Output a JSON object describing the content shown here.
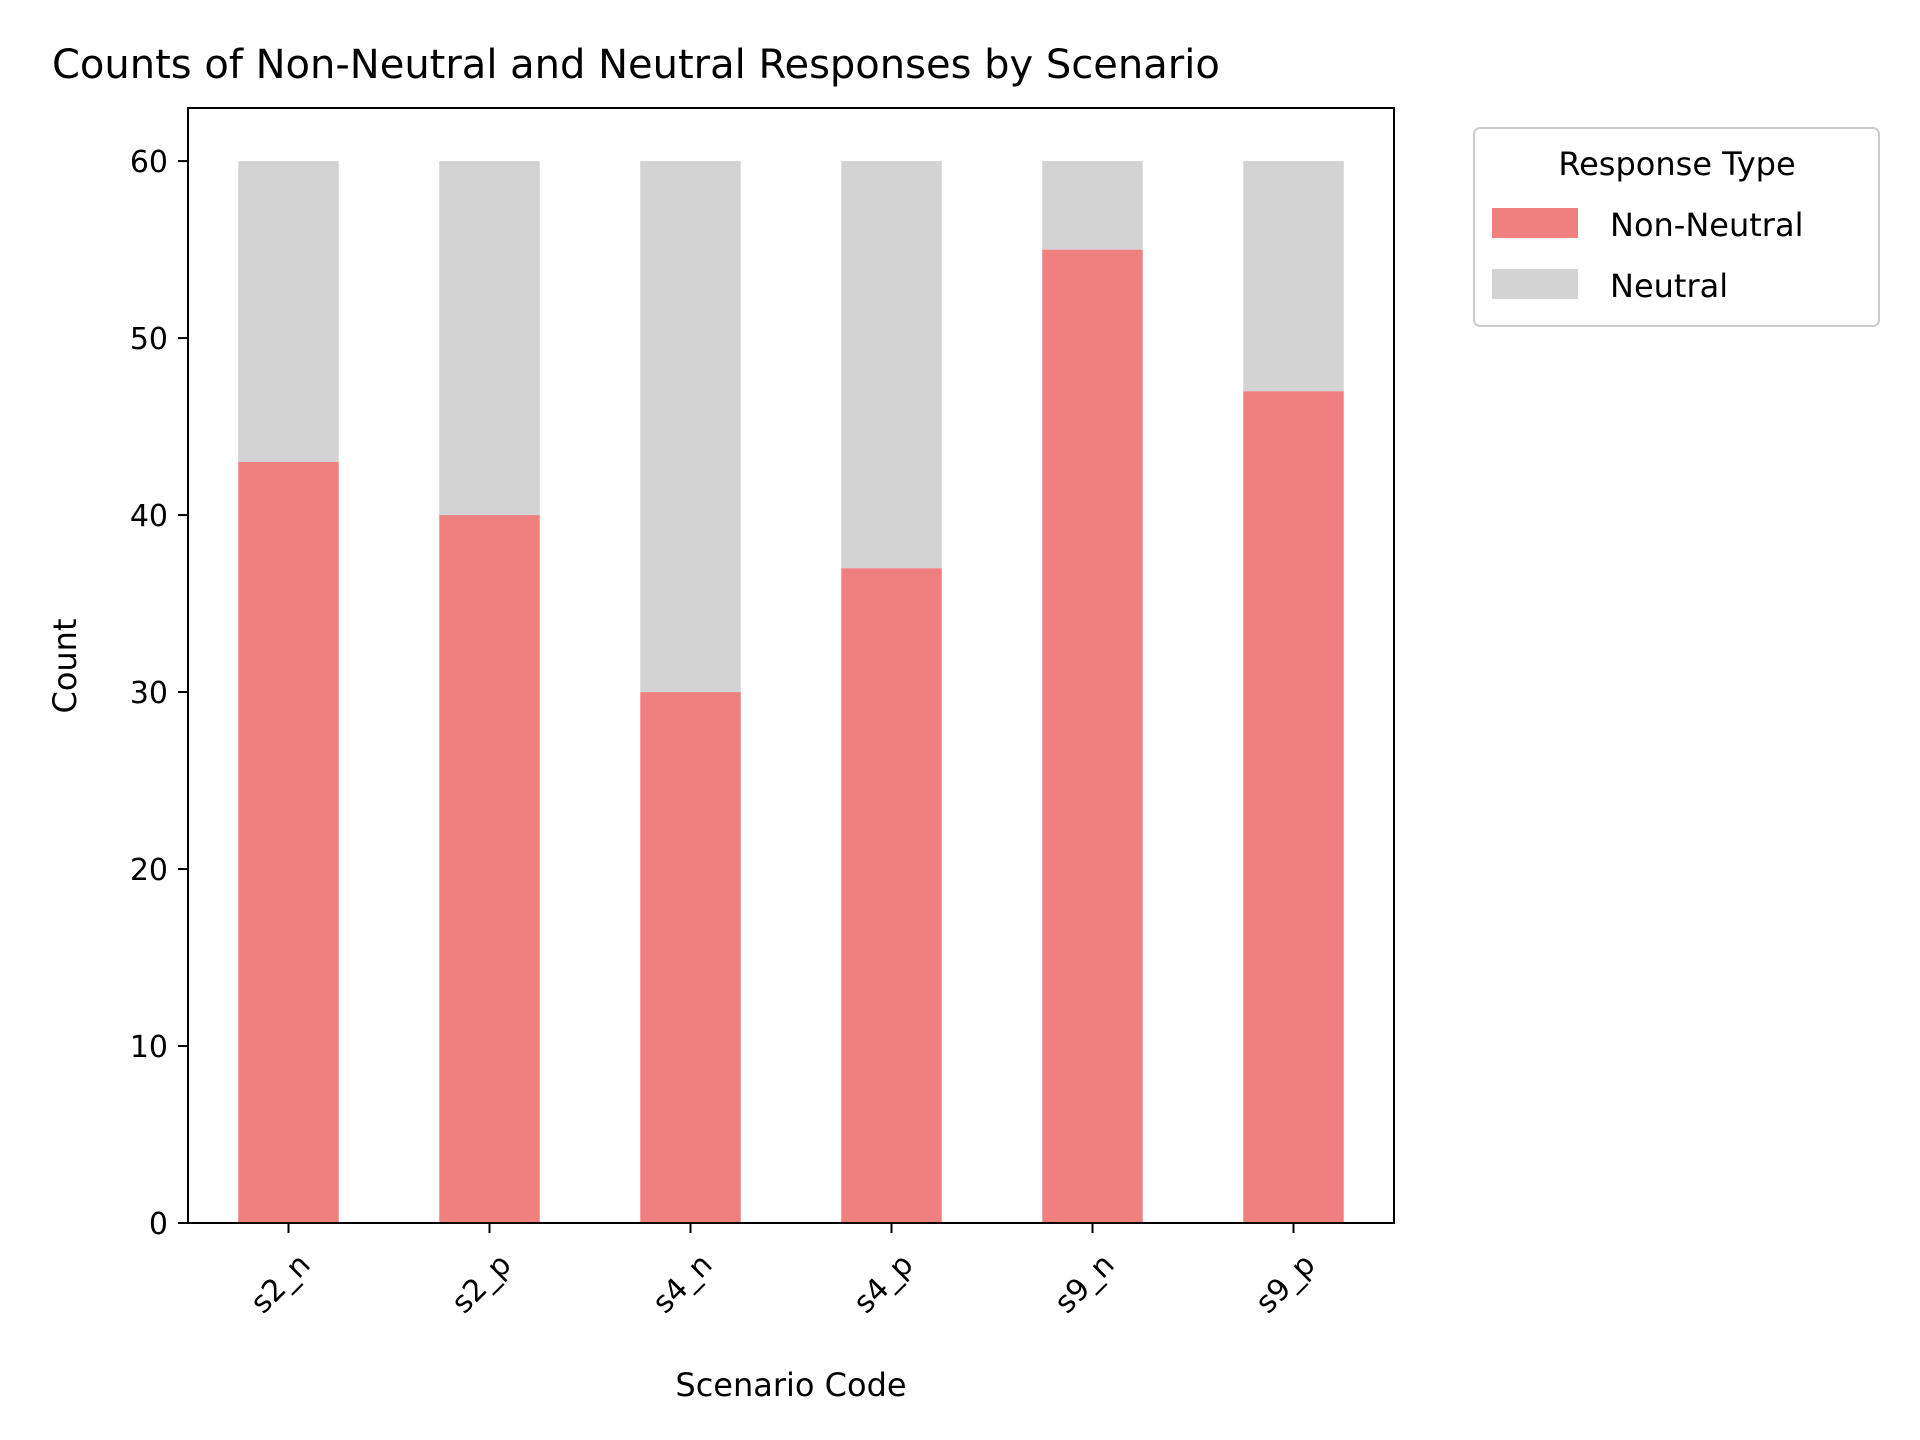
{
  "chart_data": {
    "type": "bar",
    "stacked": true,
    "title": "Counts of Non-Neutral and Neutral Responses by Scenario",
    "xlabel": "Scenario Code",
    "ylabel": "Count",
    "categories": [
      "s2_n",
      "s2_p",
      "s4_n",
      "s4_p",
      "s9_n",
      "s9_p"
    ],
    "series": [
      {
        "name": "Non-Neutral",
        "color": "#f08080",
        "values": [
          43,
          40,
          30,
          37,
          55,
          47
        ]
      },
      {
        "name": "Neutral",
        "color": "#d3d3d3",
        "values": [
          17,
          20,
          30,
          23,
          5,
          13
        ]
      }
    ],
    "ylim": [
      0,
      63
    ],
    "yticks": [
      0,
      10,
      20,
      30,
      40,
      50,
      60
    ],
    "legend": {
      "title": "Response Type",
      "position": "outside-top-right"
    },
    "grid": false
  }
}
